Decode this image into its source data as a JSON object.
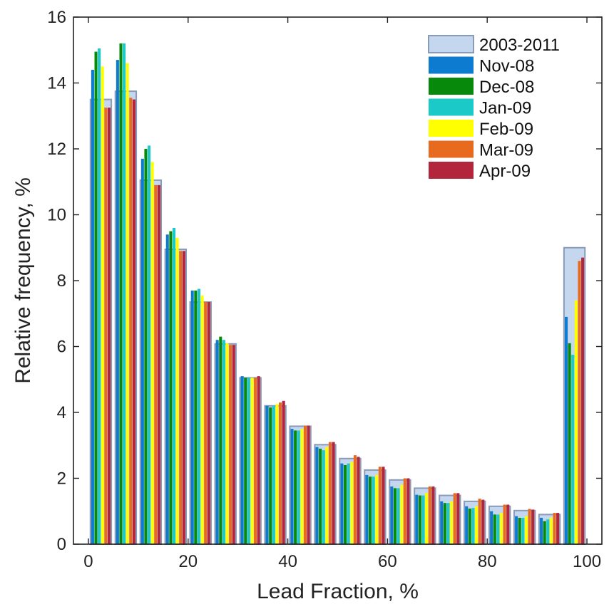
{
  "chart_data": {
    "type": "bar",
    "title": "",
    "xlabel": "Lead Fraction, %",
    "ylabel": "Relative frequency, %",
    "xlim": [
      -3,
      103
    ],
    "ylim": [
      0,
      16
    ],
    "x_ticks": [
      0,
      20,
      40,
      60,
      80,
      100
    ],
    "y_ticks": [
      0,
      2,
      4,
      6,
      8,
      10,
      12,
      14,
      16
    ],
    "legend_position": "top-right",
    "bin_centers": [
      2.5,
      7.5,
      12.5,
      17.5,
      22.5,
      27.5,
      32.5,
      37.5,
      42.5,
      47.5,
      52.5,
      57.5,
      62.5,
      67.5,
      72.5,
      77.5,
      82.5,
      87.5,
      92.5,
      97.5
    ],
    "series": [
      {
        "name": "2003-2011",
        "color": "#c5d7ef",
        "edge": "#8a9ab8",
        "style": "background",
        "values": [
          13.5,
          13.75,
          11.05,
          8.95,
          7.35,
          6.08,
          5.05,
          4.2,
          3.58,
          3.02,
          2.6,
          2.25,
          1.95,
          1.7,
          1.48,
          1.3,
          1.15,
          1.02,
          0.9,
          9.0
        ]
      },
      {
        "name": "Nov-08",
        "color": "#0c7bd0",
        "values": [
          14.4,
          14.7,
          11.7,
          9.4,
          7.7,
          6.2,
          5.1,
          4.2,
          3.5,
          2.95,
          2.45,
          2.1,
          1.75,
          1.5,
          1.3,
          1.15,
          1.0,
          0.85,
          0.8,
          6.9
        ]
      },
      {
        "name": "Dec-08",
        "color": "#078a0c",
        "values": [
          14.95,
          15.2,
          12.0,
          9.5,
          7.7,
          6.3,
          5.05,
          4.15,
          3.45,
          2.9,
          2.4,
          2.05,
          1.7,
          1.48,
          1.25,
          1.08,
          0.9,
          0.8,
          0.7,
          6.1
        ]
      },
      {
        "name": "Jan-09",
        "color": "#1cc9c9",
        "values": [
          15.05,
          15.2,
          12.1,
          9.6,
          7.75,
          6.2,
          5.05,
          4.2,
          3.45,
          2.85,
          2.45,
          2.05,
          1.7,
          1.48,
          1.25,
          1.1,
          0.9,
          0.8,
          0.75,
          5.75
        ]
      },
      {
        "name": "Feb-09",
        "color": "#ffff00",
        "values": [
          14.5,
          14.6,
          11.6,
          9.3,
          7.55,
          6.1,
          5.05,
          4.25,
          3.5,
          2.95,
          2.5,
          2.1,
          1.8,
          1.55,
          1.3,
          1.15,
          0.95,
          0.85,
          0.8,
          7.4
        ]
      },
      {
        "name": "Mar-09",
        "color": "#e86a1f",
        "values": [
          13.25,
          13.55,
          10.9,
          8.9,
          7.35,
          6.05,
          5.05,
          4.3,
          3.6,
          3.1,
          2.7,
          2.35,
          2.0,
          1.75,
          1.55,
          1.38,
          1.2,
          1.07,
          0.95,
          8.6
        ]
      },
      {
        "name": "Apr-09",
        "color": "#b3253a",
        "values": [
          13.25,
          13.5,
          10.9,
          8.9,
          7.35,
          6.05,
          5.1,
          4.35,
          3.6,
          3.1,
          2.65,
          2.35,
          2.0,
          1.75,
          1.55,
          1.35,
          1.2,
          1.05,
          0.95,
          8.7
        ]
      }
    ]
  }
}
